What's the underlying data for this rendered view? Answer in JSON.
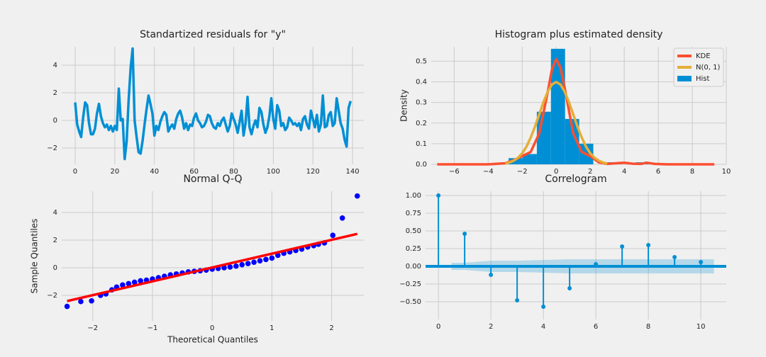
{
  "chart_data": [
    {
      "type": "line",
      "title": "Standartized residuals for \"y\"",
      "color": "#008fd5",
      "grid": true,
      "x": [
        0,
        1,
        2,
        3,
        4,
        5,
        6,
        7,
        8,
        9,
        10,
        11,
        12,
        13,
        14,
        15,
        16,
        17,
        18,
        19,
        20,
        21,
        22,
        23,
        24,
        25,
        26,
        27,
        28,
        29,
        30,
        31,
        32,
        33,
        34,
        35,
        36,
        37,
        38,
        39,
        40,
        41,
        42,
        43,
        44,
        45,
        46,
        47,
        48,
        49,
        50,
        51,
        52,
        53,
        54,
        55,
        56,
        57,
        58,
        59,
        60,
        61,
        62,
        63,
        64,
        65,
        66,
        67,
        68,
        69,
        70,
        71,
        72,
        73,
        74,
        75,
        76,
        77,
        78,
        79,
        80,
        81,
        82,
        83,
        84,
        85,
        86,
        87,
        88,
        89,
        90,
        91,
        92,
        93,
        94,
        95,
        96,
        97,
        98,
        99,
        100,
        101,
        102,
        103,
        104,
        105,
        106,
        107,
        108,
        109,
        110,
        111,
        112,
        113,
        114,
        115,
        116,
        117,
        118,
        119,
        120,
        121,
        122,
        123,
        124,
        125,
        126,
        127,
        128,
        129,
        130,
        131,
        132,
        133,
        134,
        135,
        136,
        137,
        138,
        139
      ],
      "values": [
        1.3,
        -0.3,
        -0.8,
        -1.2,
        0.2,
        1.3,
        1.1,
        -0.2,
        -1.0,
        -1.0,
        -0.6,
        0.5,
        1.2,
        0.3,
        -0.2,
        -0.5,
        -0.3,
        -0.7,
        -0.4,
        -0.8,
        -0.4,
        -0.7,
        2.3,
        0.0,
        0.1,
        -2.8,
        -1.5,
        1.5,
        3.8,
        5.2,
        0.0,
        -1.2,
        -2.3,
        -2.4,
        -1.5,
        -0.3,
        0.8,
        1.8,
        1.2,
        0.5,
        -1.1,
        -0.4,
        -0.7,
        -0.1,
        0.3,
        0.6,
        0.4,
        -0.8,
        -0.5,
        -0.3,
        -0.6,
        0.1,
        0.5,
        0.7,
        0.2,
        -0.6,
        -0.2,
        -0.7,
        -0.3,
        -0.4,
        0.2,
        0.5,
        0.0,
        -0.2,
        -0.5,
        -0.4,
        -0.1,
        0.4,
        0.3,
        -0.2,
        -0.5,
        -0.6,
        -0.2,
        -0.4,
        0.0,
        0.2,
        -0.3,
        -0.8,
        -0.4,
        0.5,
        0.1,
        -0.3,
        -0.9,
        -0.1,
        0.7,
        -1.1,
        -0.2,
        1.7,
        -0.5,
        -1.0,
        -0.4,
        0.0,
        -0.5,
        0.9,
        0.6,
        -0.3,
        -0.9,
        -0.5,
        0.3,
        1.6,
        0.1,
        -0.6,
        1.1,
        0.7,
        -0.4,
        -0.2,
        -0.7,
        -0.5,
        0.2,
        0.0,
        -0.3,
        -0.2,
        -0.4,
        -0.2,
        -0.7,
        0.1,
        0.3,
        -0.3,
        -0.6,
        0.7,
        0.1,
        -0.5,
        0.4,
        -0.8,
        -0.3,
        1.8,
        -0.5,
        -0.4,
        0.4,
        0.6,
        -0.4,
        -0.2,
        1.6,
        0.7,
        -0.2,
        -0.6,
        -1.4,
        -1.9,
        0.9,
        1.4
      ],
      "xlim": [
        -6.8,
        145.7
      ],
      "ylim": [
        -3.18,
        5.33
      ],
      "xticks": [
        0,
        20,
        40,
        60,
        80,
        100,
        120,
        140
      ],
      "yticks": [
        {
          "value": -2,
          "label": "−2"
        },
        0,
        2,
        4
      ]
    },
    {
      "type": "histogram",
      "title": "Histogram plus estimated density",
      "ylabel": "Density",
      "grid": true,
      "legend": "upper right",
      "hist": {
        "name": "Hist",
        "color": "#008fd5",
        "bins": [
          -2.8,
          -1.97,
          -1.14,
          -0.31,
          0.52,
          1.35,
          2.18,
          3.01,
          3.84,
          4.67,
          5.5
        ],
        "values": [
          0.03,
          0.05,
          0.255,
          0.56,
          0.22,
          0.1,
          0,
          0.01,
          0,
          0.01
        ]
      },
      "series": [
        {
          "name": "KDE",
          "color": "#fc4f30",
          "x": [
            -7,
            -4,
            -3,
            -2.5,
            -2,
            -1.5,
            -1,
            -0.5,
            -0.25,
            0,
            0.25,
            0.5,
            1,
            1.5,
            2,
            2.5,
            3,
            3.5,
            4,
            4.5,
            5,
            5.3,
            5.8,
            6.5,
            9.3
          ],
          "values": [
            0,
            0,
            0.005,
            0.02,
            0.04,
            0.06,
            0.15,
            0.35,
            0.46,
            0.51,
            0.47,
            0.37,
            0.15,
            0.06,
            0.04,
            0.01,
            0.002,
            0.005,
            0.008,
            0.003,
            0.002,
            0.008,
            0.002,
            0,
            0
          ]
        },
        {
          "name": "N(0, 1)",
          "color": "#e5ae38",
          "x": [
            -3,
            -2.75,
            -2.5,
            -2.25,
            -2,
            -1.75,
            -1.5,
            -1.25,
            -1,
            -0.75,
            -0.5,
            -0.25,
            0,
            0.25,
            0.5,
            0.75,
            1,
            1.25,
            1.5,
            1.75,
            2,
            2.25,
            2.5,
            2.75,
            3
          ],
          "values": [
            0.004,
            0.009,
            0.018,
            0.032,
            0.054,
            0.086,
            0.13,
            0.183,
            0.242,
            0.301,
            0.352,
            0.387,
            0.399,
            0.387,
            0.352,
            0.301,
            0.242,
            0.183,
            0.13,
            0.086,
            0.054,
            0.032,
            0.018,
            0.009,
            0.004
          ]
        }
      ],
      "xlim": [
        -7.35,
        10.0
      ],
      "ylim": [
        0,
        0.57
      ],
      "xticks": [
        {
          "value": -6,
          "label": "−6"
        },
        {
          "value": -4,
          "label": "−4"
        },
        {
          "value": -2,
          "label": "−2"
        },
        0,
        2,
        4,
        6,
        8,
        10
      ],
      "yticks": [
        {
          "value": 0,
          "label": "0.0"
        },
        0.1,
        0.2,
        0.3,
        0.4,
        0.5
      ]
    },
    {
      "type": "scatter",
      "title": "Normal Q-Q",
      "xlabel": "Theoretical Quantiles",
      "ylabel": "Sample Quantiles",
      "color": "#0000ff",
      "grid": true,
      "x": [
        -2.43,
        -2.2,
        -2.02,
        -1.87,
        -1.78,
        -1.68,
        -1.6,
        -1.5,
        -1.4,
        -1.3,
        -1.2,
        -1.1,
        -1.0,
        -0.9,
        -0.8,
        -0.7,
        -0.6,
        -0.5,
        -0.4,
        -0.3,
        -0.2,
        -0.1,
        0.0,
        0.1,
        0.2,
        0.3,
        0.4,
        0.5,
        0.6,
        0.7,
        0.8,
        0.9,
        1.0,
        1.1,
        1.2,
        1.3,
        1.4,
        1.5,
        1.6,
        1.7,
        1.78,
        1.88,
        2.02,
        2.18,
        2.43
      ],
      "values": [
        -2.8,
        -2.45,
        -2.4,
        -2.0,
        -1.9,
        -1.6,
        -1.4,
        -1.25,
        -1.15,
        -1.05,
        -0.95,
        -0.9,
        -0.82,
        -0.72,
        -0.62,
        -0.52,
        -0.45,
        -0.38,
        -0.3,
        -0.26,
        -0.22,
        -0.17,
        -0.1,
        -0.05,
        0.0,
        0.05,
        0.12,
        0.22,
        0.3,
        0.4,
        0.5,
        0.6,
        0.7,
        0.9,
        1.05,
        1.15,
        1.25,
        1.35,
        1.5,
        1.6,
        1.7,
        1.8,
        2.35,
        3.6,
        5.2
      ],
      "fit_line": {
        "color": "#ff0000",
        "x": [
          -2.43,
          2.43
        ],
        "values": [
          -2.42,
          2.45
        ]
      },
      "xlim": [
        -2.52,
        2.54
      ],
      "ylim": [
        -3.85,
        5.54
      ],
      "xticks": [
        {
          "value": -2,
          "label": "−2"
        },
        {
          "value": -1,
          "label": "−1"
        },
        0,
        1,
        2
      ],
      "yticks": [
        {
          "value": -2,
          "label": "−2"
        },
        0,
        2,
        4
      ]
    },
    {
      "type": "stem",
      "title": "Correlogram",
      "color": "#008fd5",
      "grid": true,
      "x": [
        0,
        1,
        2,
        3,
        4,
        5,
        6,
        7,
        8,
        9,
        10
      ],
      "values": [
        1.0,
        0.46,
        -0.12,
        -0.48,
        -0.57,
        -0.31,
        0.03,
        0.28,
        0.3,
        0.13,
        0.06
      ],
      "conf_band": {
        "x": [
          0.5,
          1,
          2,
          3,
          4,
          5,
          6,
          7,
          8,
          9,
          10,
          10.5
        ],
        "upper": [
          0.05,
          0.05,
          0.08,
          0.08,
          0.09,
          0.1,
          0.1,
          0.1,
          0.1,
          0.1,
          0.1,
          0.1
        ],
        "lower": [
          -0.05,
          -0.05,
          -0.08,
          -0.08,
          -0.09,
          -0.1,
          -0.1,
          -0.1,
          -0.1,
          -0.1,
          -0.1,
          -0.1
        ]
      },
      "xlim": [
        -0.49,
        10.97
      ],
      "ylim": [
        -0.75,
        1.06
      ],
      "xticks": [
        0,
        2,
        4,
        6,
        8,
        10
      ],
      "yticks": [
        {
          "value": -0.5,
          "label": "−0.50"
        },
        {
          "value": -0.25,
          "label": "−0.25"
        },
        {
          "value": 0,
          "label": "0.00"
        },
        {
          "value": 0.25,
          "label": "0.25"
        },
        {
          "value": 0.5,
          "label": "0.50"
        },
        {
          "value": 0.75,
          "label": "0.75"
        },
        {
          "value": 1,
          "label": "1.00"
        }
      ]
    }
  ]
}
